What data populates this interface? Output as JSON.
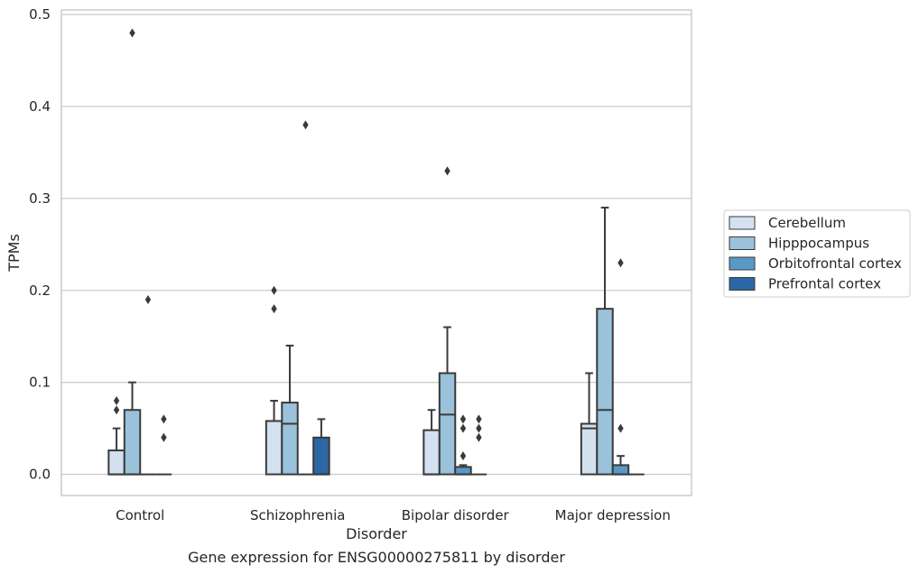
{
  "chart_data": {
    "type": "box",
    "title": "Gene expression for ENSG00000275811 by disorder",
    "xlabel": "Disorder",
    "ylabel": "TPMs",
    "ylim": [
      -0.023,
      0.505
    ],
    "yticks": [
      0.0,
      0.1,
      0.2,
      0.3,
      0.4,
      0.5
    ],
    "ytick_labels": [
      "0.0",
      "0.1",
      "0.2",
      "0.3",
      "0.4",
      "0.5"
    ],
    "grid": "horizontal",
    "legend_position": "right",
    "categories": [
      "Control",
      "Schizophrenia",
      "Bipolar disorder",
      "Major depression"
    ],
    "series": [
      {
        "name": "Cerebellum",
        "color": "#d3e1f0",
        "boxes": [
          {
            "q1": 0.0,
            "median": 0.0,
            "q3": 0.026,
            "whisker_low": 0.0,
            "whisker_high": 0.05,
            "outliers": [
              0.07,
              0.08
            ]
          },
          {
            "q1": 0.0,
            "median": 0.058,
            "q3": 0.058,
            "whisker_low": 0.0,
            "whisker_high": 0.08,
            "outliers": [
              0.18,
              0.2
            ]
          },
          {
            "q1": 0.0,
            "median": 0.0,
            "q3": 0.048,
            "whisker_low": 0.0,
            "whisker_high": 0.07,
            "outliers": []
          },
          {
            "q1": 0.0,
            "median": 0.05,
            "q3": 0.055,
            "whisker_low": 0.0,
            "whisker_high": 0.11,
            "outliers": []
          }
        ]
      },
      {
        "name": "Hipppocampus",
        "color": "#9ac2da",
        "boxes": [
          {
            "q1": 0.0,
            "median": 0.0,
            "q3": 0.07,
            "whisker_low": 0.0,
            "whisker_high": 0.1,
            "outliers": [
              0.48
            ]
          },
          {
            "q1": 0.0,
            "median": 0.055,
            "q3": 0.078,
            "whisker_low": 0.0,
            "whisker_high": 0.14,
            "outliers": []
          },
          {
            "q1": 0.0,
            "median": 0.065,
            "q3": 0.11,
            "whisker_low": 0.0,
            "whisker_high": 0.16,
            "outliers": [
              0.33
            ]
          },
          {
            "q1": 0.0,
            "median": 0.07,
            "q3": 0.18,
            "whisker_low": 0.0,
            "whisker_high": 0.29,
            "outliers": []
          }
        ]
      },
      {
        "name": "Orbitofrontal cortex",
        "color": "#5a98c5",
        "boxes": [
          {
            "q1": 0.0,
            "median": 0.0,
            "q3": 0.0,
            "whisker_low": 0.0,
            "whisker_high": 0.0,
            "outliers": [
              0.19
            ]
          },
          {
            "q1": 0.0,
            "median": 0.0,
            "q3": 0.0,
            "whisker_low": 0.0,
            "whisker_high": 0.0,
            "outliers": [
              0.38
            ]
          },
          {
            "q1": 0.0,
            "median": 0.0,
            "q3": 0.008,
            "whisker_low": 0.0,
            "whisker_high": 0.01,
            "outliers": [
              0.02,
              0.05,
              0.06
            ]
          },
          {
            "q1": 0.0,
            "median": 0.0,
            "q3": 0.01,
            "whisker_low": 0.0,
            "whisker_high": 0.02,
            "outliers": [
              0.05,
              0.23
            ]
          }
        ]
      },
      {
        "name": "Prefrontal cortex",
        "color": "#2a67a4",
        "boxes": [
          {
            "q1": 0.0,
            "median": 0.0,
            "q3": 0.0,
            "whisker_low": 0.0,
            "whisker_high": 0.0,
            "outliers": [
              0.04,
              0.06
            ]
          },
          {
            "q1": 0.0,
            "median": 0.0,
            "q3": 0.04,
            "whisker_low": 0.0,
            "whisker_high": 0.06,
            "outliers": []
          },
          {
            "q1": 0.0,
            "median": 0.0,
            "q3": 0.0,
            "whisker_low": 0.0,
            "whisker_high": 0.0,
            "outliers": [
              0.04,
              0.05,
              0.06
            ]
          },
          {
            "q1": 0.0,
            "median": 0.0,
            "q3": 0.0,
            "whisker_low": 0.0,
            "whisker_high": 0.0,
            "outliers": []
          }
        ]
      }
    ],
    "colors": {
      "frame": "#cccccc",
      "grid": "#cccccc",
      "stroke": "#3a3a3a",
      "outlier": "#3a3a3a",
      "background": "#ffffff"
    }
  }
}
